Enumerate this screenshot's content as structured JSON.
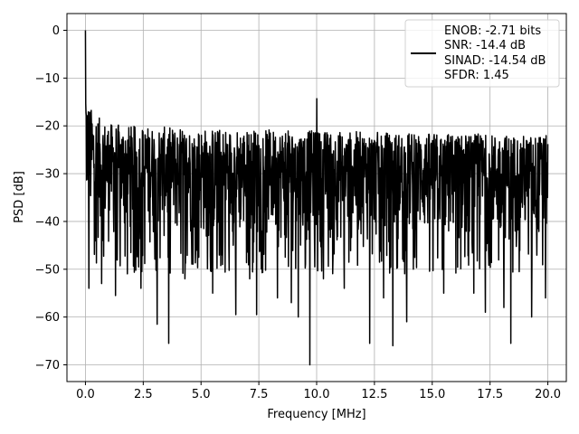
{
  "chart_data": {
    "type": "line",
    "xlabel": "Frequency [MHz]",
    "ylabel": "PSD [dB]",
    "xlim": [
      -0.8,
      20.8
    ],
    "ylim": [
      -73.5,
      3.5
    ],
    "xticks": [
      0.0,
      2.5,
      5.0,
      7.5,
      10.0,
      12.5,
      15.0,
      17.5,
      20.0
    ],
    "xtick_labels": [
      "0.0",
      "2.5",
      "5.0",
      "7.5",
      "10.0",
      "12.5",
      "15.0",
      "17.5",
      "20.0"
    ],
    "yticks": [
      0,
      -10,
      -20,
      -30,
      -40,
      -50,
      -60,
      -70
    ],
    "ytick_labels": [
      "0",
      "−10",
      "−20",
      "−30",
      "−40",
      "−50",
      "−60",
      "−70"
    ],
    "grid": true,
    "legend_position": "top-right",
    "series": [
      {
        "color": "#000000",
        "legend_lines": [
          "ENOB: -2.71 bits",
          "SNR: -14.4 dB",
          "SINAD: -14.54 dB",
          "SFDR: 1.45"
        ],
        "x_range": [
          0.0,
          20.0
        ],
        "peak": {
          "x": 0.0,
          "y": 0.0
        },
        "spur": {
          "x": 10.0,
          "y": -14.3
        },
        "noise_envelope": {
          "x": [
            0.0,
            0.05,
            0.2,
            0.5,
            1.0,
            2.0,
            5.0,
            10.0,
            15.0,
            20.0
          ],
          "upper": [
            -8,
            -14,
            -16,
            -18,
            -19.5,
            -20,
            -20.5,
            -21,
            -21.5,
            -22
          ],
          "lower": [
            -36,
            -42,
            -45,
            -46,
            -46,
            -46,
            -46,
            -46,
            -46,
            -46
          ]
        },
        "deep_dips": [
          {
            "x": 0.15,
            "y": -54
          },
          {
            "x": 0.7,
            "y": -53
          },
          {
            "x": 1.3,
            "y": -55.5
          },
          {
            "x": 2.4,
            "y": -54
          },
          {
            "x": 3.1,
            "y": -61.5
          },
          {
            "x": 3.6,
            "y": -65.5
          },
          {
            "x": 4.3,
            "y": -52
          },
          {
            "x": 5.5,
            "y": -55
          },
          {
            "x": 6.5,
            "y": -59.5
          },
          {
            "x": 7.1,
            "y": -52
          },
          {
            "x": 7.4,
            "y": -59.5
          },
          {
            "x": 8.3,
            "y": -56
          },
          {
            "x": 8.9,
            "y": -57
          },
          {
            "x": 9.2,
            "y": -60
          },
          {
            "x": 9.7,
            "y": -70
          },
          {
            "x": 10.3,
            "y": -52
          },
          {
            "x": 11.2,
            "y": -54
          },
          {
            "x": 12.3,
            "y": -65.5
          },
          {
            "x": 12.9,
            "y": -56
          },
          {
            "x": 13.3,
            "y": -66
          },
          {
            "x": 13.9,
            "y": -61
          },
          {
            "x": 15.5,
            "y": -55
          },
          {
            "x": 16.8,
            "y": -55
          },
          {
            "x": 17.3,
            "y": -59
          },
          {
            "x": 18.1,
            "y": -58
          },
          {
            "x": 18.4,
            "y": -65.5
          },
          {
            "x": 19.3,
            "y": -60
          },
          {
            "x": 19.9,
            "y": -56
          }
        ],
        "points": 1600
      }
    ]
  }
}
